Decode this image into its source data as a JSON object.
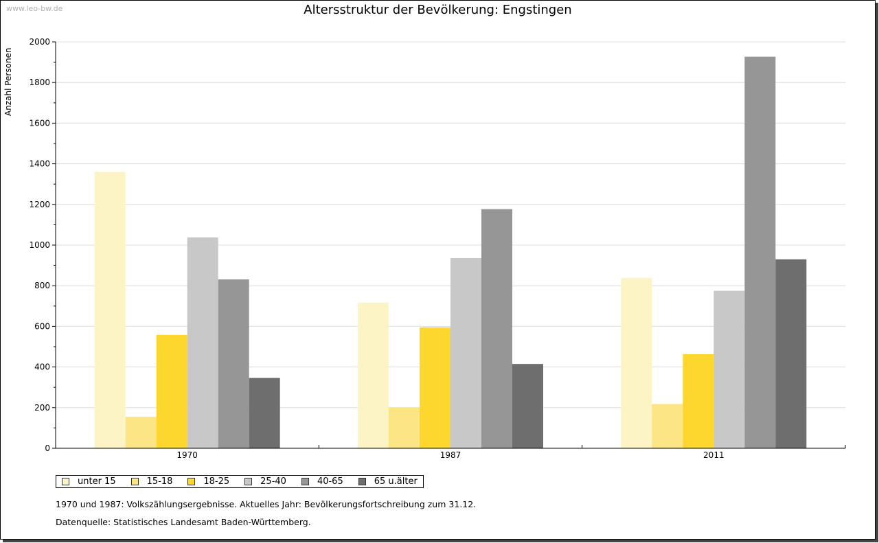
{
  "watermark": "www.leo-bw.de",
  "chart_data": {
    "type": "bar",
    "title": "Altersstruktur der Bevölkerung: Engstingen",
    "xlabel": "",
    "ylabel": "Anzahl Personen",
    "ylim": [
      0,
      2000
    ],
    "yticks": [
      0,
      200,
      400,
      600,
      800,
      1000,
      1200,
      1400,
      1600,
      1800,
      2000
    ],
    "grid": true,
    "categories": [
      "1970",
      "1987",
      "2011"
    ],
    "series": [
      {
        "name": "unter 15",
        "color": "#FCF4C4",
        "values": [
          1360,
          717,
          838
        ]
      },
      {
        "name": "15-18",
        "color": "#FCE584",
        "values": [
          155,
          200,
          218
        ]
      },
      {
        "name": "18-25",
        "color": "#FDD62E",
        "values": [
          558,
          595,
          463
        ]
      },
      {
        "name": "25-40",
        "color": "#C8C8C8",
        "values": [
          1038,
          936,
          775
        ]
      },
      {
        "name": "40-65",
        "color": "#969696",
        "values": [
          831,
          1177,
          1927
        ]
      },
      {
        "name": "65 u.älter",
        "color": "#6E6E6E",
        "values": [
          346,
          415,
          930
        ]
      }
    ],
    "legend_position": "bottom-left"
  },
  "notes": {
    "line1": "1970 und 1987: Volkszählungsergebnisse. Aktuelles Jahr: Bevölkerungsfortschreibung zum 31.12.",
    "line2": "Datenquelle: Statistisches Landesamt Baden-Württemberg."
  }
}
